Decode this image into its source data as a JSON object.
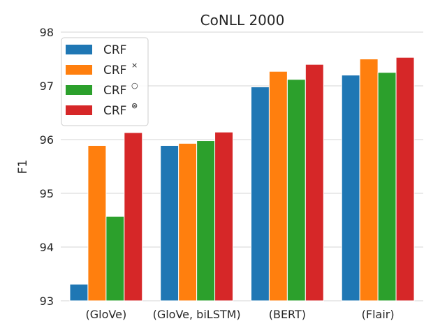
{
  "chart_data": {
    "type": "bar",
    "title": "CoNLL 2000",
    "xlabel": "",
    "ylabel": "F1",
    "ylim": [
      93,
      98
    ],
    "yticks": [
      "93",
      "94",
      "95",
      "96",
      "97",
      "98"
    ],
    "categories": [
      "(GloVe)",
      "(GloVe, biLSTM)",
      "(BERT)",
      "(Flair)"
    ],
    "series": [
      {
        "name": "CRF",
        "sup": "",
        "color": "#1f77b4",
        "values": [
          93.31,
          95.89,
          96.98,
          97.2
        ]
      },
      {
        "name": "CRF",
        "sup": "×",
        "color": "#ff7f0e",
        "values": [
          95.89,
          95.93,
          97.27,
          97.5
        ]
      },
      {
        "name": "CRF",
        "sup": "○",
        "color": "#2ca02c",
        "values": [
          94.57,
          95.98,
          97.12,
          97.25
        ]
      },
      {
        "name": "CRF",
        "sup": "⊗",
        "color": "#d62728",
        "values": [
          96.13,
          96.14,
          97.4,
          97.53
        ]
      }
    ],
    "grid": true,
    "legend_position": "top-left"
  }
}
